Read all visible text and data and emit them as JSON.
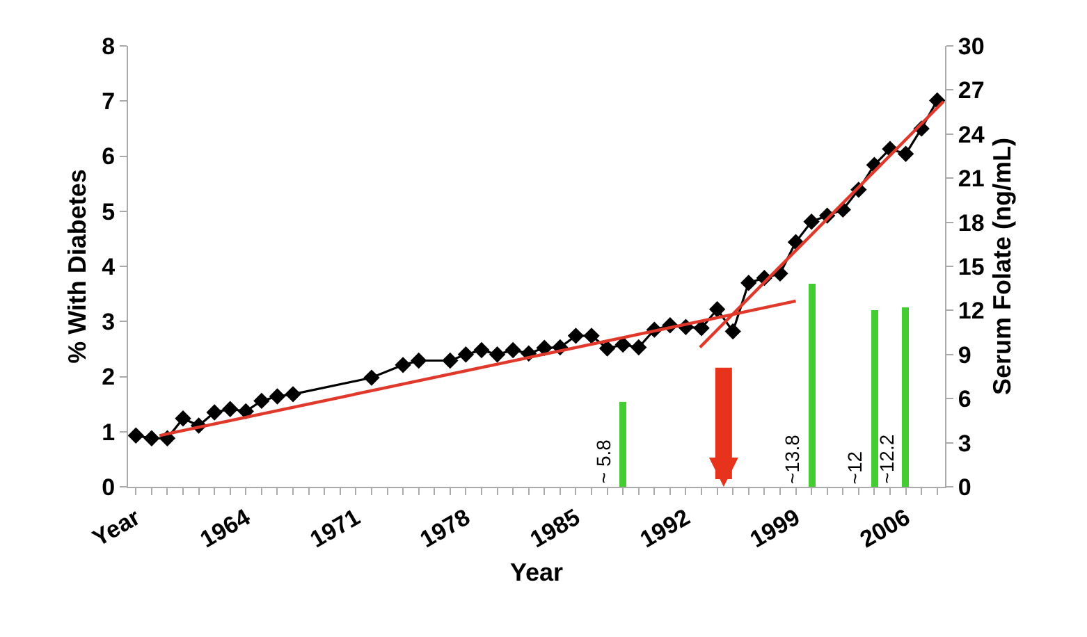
{
  "chart_data": {
    "type": "line",
    "xlabel": "Year",
    "ylabel": "% With Diabetes",
    "y2label": "Serum Folate (ng/mL)",
    "xlim": [
      1956.5,
      2008.5
    ],
    "xticks": [
      {
        "value": 1957,
        "label": "Year"
      },
      {
        "value": 1958,
        "label": null
      },
      {
        "value": 1959,
        "label": null
      },
      {
        "value": 1960,
        "label": null
      },
      {
        "value": 1961,
        "label": null
      },
      {
        "value": 1962,
        "label": null
      },
      {
        "value": 1963,
        "label": null
      },
      1964,
      {
        "value": 1965,
        "label": null
      },
      {
        "value": 1966,
        "label": null
      },
      {
        "value": 1967,
        "label": null
      },
      {
        "value": 1968,
        "label": null
      },
      {
        "value": 1969,
        "label": null
      },
      {
        "value": 1970,
        "label": null
      },
      1971,
      {
        "value": 1972,
        "label": null
      },
      {
        "value": 1973,
        "label": null
      },
      {
        "value": 1974,
        "label": null
      },
      {
        "value": 1975,
        "label": null
      },
      {
        "value": 1976,
        "label": null
      },
      {
        "value": 1977,
        "label": null
      },
      1978,
      {
        "value": 1979,
        "label": null
      },
      {
        "value": 1980,
        "label": null
      },
      {
        "value": 1981,
        "label": null
      },
      {
        "value": 1982,
        "label": null
      },
      {
        "value": 1983,
        "label": null
      },
      {
        "value": 1984,
        "label": null
      },
      1985,
      {
        "value": 1986,
        "label": null
      },
      {
        "value": 1987,
        "label": null
      },
      {
        "value": 1988,
        "label": null
      },
      {
        "value": 1989,
        "label": null
      },
      {
        "value": 1990,
        "label": null
      },
      {
        "value": 1991,
        "label": null
      },
      1992,
      {
        "value": 1993,
        "label": null
      },
      {
        "value": 1994,
        "label": null
      },
      {
        "value": 1995,
        "label": null
      },
      {
        "value": 1996,
        "label": null
      },
      {
        "value": 1997,
        "label": null
      },
      {
        "value": 1998,
        "label": null
      },
      1999,
      {
        "value": 2000,
        "label": null
      },
      {
        "value": 2001,
        "label": null
      },
      {
        "value": 2002,
        "label": null
      },
      {
        "value": 2003,
        "label": null
      },
      {
        "value": 2004,
        "label": null
      },
      {
        "value": 2005,
        "label": null
      },
      2006,
      {
        "value": 2007,
        "label": null
      },
      {
        "value": 2008,
        "label": null
      }
    ],
    "ylim": [
      0,
      8
    ],
    "yticks": [
      0,
      1,
      2,
      3,
      4,
      5,
      6,
      7,
      8
    ],
    "y2lim": [
      0,
      30
    ],
    "y2ticks": [
      0,
      3,
      6,
      9,
      12,
      15,
      18,
      21,
      24,
      27,
      30
    ],
    "series": [
      {
        "color": "#000000",
        "marker": "diamond",
        "x": [
          1957,
          1958,
          1959,
          1960,
          1961,
          1962,
          1963,
          1964,
          1965,
          1966,
          1967,
          1972,
          1974,
          1975,
          1977,
          1978,
          1979,
          1980,
          1981,
          1982,
          1983,
          1984,
          1985,
          1986,
          1987,
          1988,
          1989,
          1990,
          1991,
          1992,
          1993,
          1994,
          1995,
          1996,
          1997,
          1998,
          1999,
          2000,
          2001,
          2002,
          2003,
          2004,
          2005,
          2006,
          2007,
          2008
        ],
        "values": [
          0.93,
          0.88,
          0.88,
          1.24,
          1.11,
          1.35,
          1.41,
          1.37,
          1.56,
          1.64,
          1.68,
          1.98,
          2.21,
          2.29,
          2.29,
          2.4,
          2.48,
          2.4,
          2.48,
          2.42,
          2.52,
          2.53,
          2.74,
          2.74,
          2.51,
          2.58,
          2.53,
          2.85,
          2.93,
          2.9,
          2.88,
          3.22,
          2.82,
          3.7,
          3.79,
          3.87,
          4.44,
          4.81,
          4.92,
          5.03,
          5.39,
          5.84,
          6.13,
          6.04,
          6.5,
          7.01
        ]
      },
      {
        "color": "#e0392b",
        "marker": "none",
        "x": [
          1958.5,
          1999.0
        ],
        "values": [
          0.93,
          3.37
        ]
      },
      {
        "color": "#e0392b",
        "marker": "none",
        "x": [
          1992.9,
          2008.4
        ],
        "values": [
          2.53,
          6.99
        ]
      },
      {
        "type": "bar",
        "axis": "y2",
        "color": "#44cc33",
        "x": [
          1988,
          2000,
          2004,
          2006
        ],
        "values": [
          5.8,
          13.8,
          12,
          12.2
        ],
        "value_labels": [
          "~ 5.8",
          "~13.8",
          "~12",
          "~12.2"
        ]
      }
    ]
  }
}
